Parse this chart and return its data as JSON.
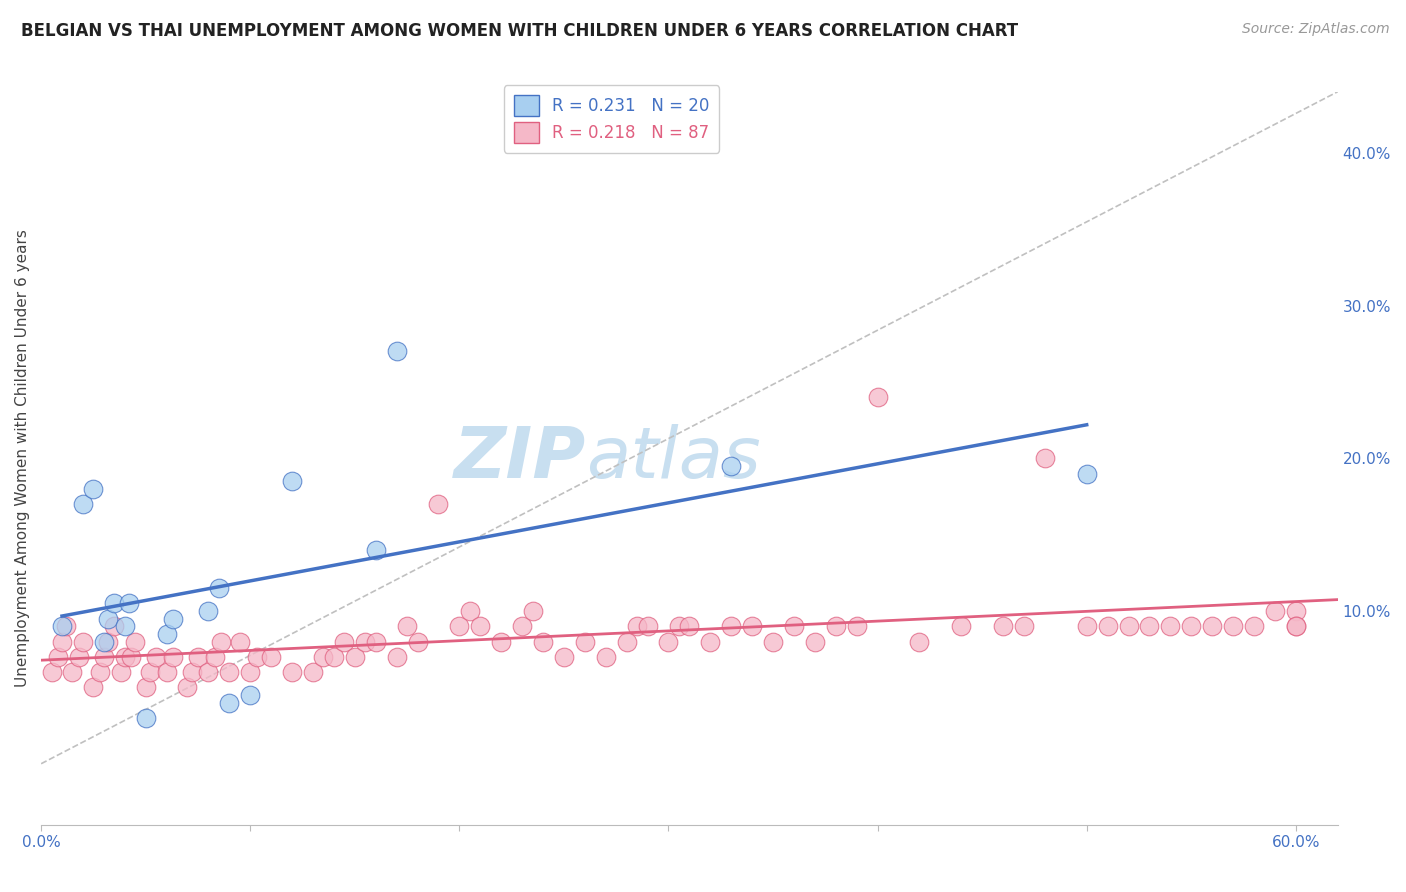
{
  "title": "BELGIAN VS THAI UNEMPLOYMENT AMONG WOMEN WITH CHILDREN UNDER 6 YEARS CORRELATION CHART",
  "source": "Source: ZipAtlas.com",
  "ylabel": "Unemployment Among Women with Children Under 6 years",
  "belgian_R": 0.231,
  "belgian_N": 20,
  "thai_R": 0.218,
  "thai_N": 87,
  "belgian_color": "#a8cff0",
  "thai_color": "#f5b8c8",
  "belgian_line_color": "#4472c4",
  "thai_line_color": "#e06080",
  "ref_line_color": "#c0c0c0",
  "background_color": "#ffffff",
  "grid_color": "#d0d0d0",
  "belgian_points_x": [
    1.0,
    2.0,
    2.5,
    3.0,
    3.2,
    3.5,
    4.0,
    4.2,
    5.0,
    6.0,
    6.3,
    8.0,
    8.5,
    9.0,
    10.0,
    12.0,
    16.0,
    17.0,
    33.0,
    50.0
  ],
  "belgian_points_y": [
    9.0,
    17.0,
    18.0,
    8.0,
    9.5,
    10.5,
    9.0,
    10.5,
    3.0,
    8.5,
    9.5,
    10.0,
    11.5,
    4.0,
    4.5,
    18.5,
    14.0,
    27.0,
    19.5,
    19.0
  ],
  "thai_points_x": [
    0.5,
    0.8,
    1.0,
    1.2,
    1.5,
    1.8,
    2.0,
    2.5,
    2.8,
    3.0,
    3.2,
    3.5,
    3.8,
    4.0,
    4.3,
    4.5,
    5.0,
    5.2,
    5.5,
    6.0,
    6.3,
    7.0,
    7.2,
    7.5,
    8.0,
    8.3,
    8.6,
    9.0,
    9.5,
    10.0,
    10.3,
    11.0,
    12.0,
    13.0,
    13.5,
    14.0,
    14.5,
    15.0,
    15.5,
    16.0,
    17.0,
    17.5,
    18.0,
    19.0,
    20.0,
    20.5,
    21.0,
    22.0,
    23.0,
    23.5,
    24.0,
    25.0,
    26.0,
    27.0,
    28.0,
    28.5,
    29.0,
    30.0,
    30.5,
    31.0,
    32.0,
    33.0,
    34.0,
    35.0,
    36.0,
    37.0,
    38.0,
    39.0,
    40.0,
    42.0,
    44.0,
    46.0,
    47.0,
    48.0,
    50.0,
    51.0,
    52.0,
    53.0,
    54.0,
    55.0,
    56.0,
    57.0,
    58.0,
    59.0,
    60.0,
    60.0,
    60.0
  ],
  "thai_points_y": [
    6.0,
    7.0,
    8.0,
    9.0,
    6.0,
    7.0,
    8.0,
    5.0,
    6.0,
    7.0,
    8.0,
    9.0,
    6.0,
    7.0,
    7.0,
    8.0,
    5.0,
    6.0,
    7.0,
    6.0,
    7.0,
    5.0,
    6.0,
    7.0,
    6.0,
    7.0,
    8.0,
    6.0,
    8.0,
    6.0,
    7.0,
    7.0,
    6.0,
    6.0,
    7.0,
    7.0,
    8.0,
    7.0,
    8.0,
    8.0,
    7.0,
    9.0,
    8.0,
    17.0,
    9.0,
    10.0,
    9.0,
    8.0,
    9.0,
    10.0,
    8.0,
    7.0,
    8.0,
    7.0,
    8.0,
    9.0,
    9.0,
    8.0,
    9.0,
    9.0,
    8.0,
    9.0,
    9.0,
    8.0,
    9.0,
    8.0,
    9.0,
    9.0,
    24.0,
    8.0,
    9.0,
    9.0,
    9.0,
    20.0,
    9.0,
    9.0,
    9.0,
    9.0,
    9.0,
    9.0,
    9.0,
    9.0,
    9.0,
    10.0,
    10.0,
    9.0,
    9.0
  ],
  "xlim": [
    0.0,
    62.0
  ],
  "ylim": [
    -4.0,
    44.0
  ],
  "x_ticks": [
    0.0,
    10.0,
    20.0,
    30.0,
    40.0,
    50.0,
    60.0
  ],
  "y_ticks_right": [
    10.0,
    20.0,
    30.0,
    40.0
  ],
  "y_tick_labels_right": [
    "10.0%",
    "20.0%",
    "30.0%",
    "40.0%"
  ],
  "x_tick_labels": [
    "0.0%",
    "",
    "",
    "",
    "",
    "",
    "60.0%"
  ],
  "title_fontsize": 12,
  "source_fontsize": 10,
  "axis_label_fontsize": 11,
  "tick_fontsize": 11,
  "legend_fontsize": 12,
  "watermark_zip_color": "#c8dff0",
  "watermark_atlas_color": "#c8dff0"
}
